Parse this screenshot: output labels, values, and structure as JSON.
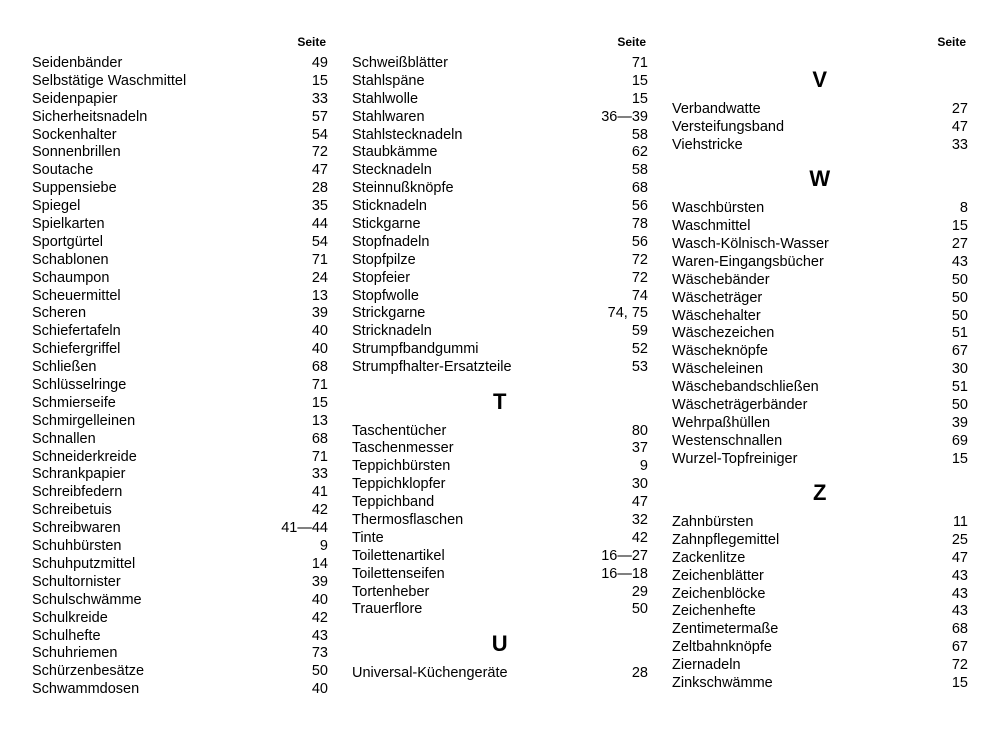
{
  "header_label": "Seite",
  "columns": [
    {
      "sections": [
        {
          "letter": null,
          "entries": [
            {
              "label": "Seidenbänder",
              "page": "49"
            },
            {
              "label": "Selbstätige Waschmittel",
              "page": "15"
            },
            {
              "label": "Seidenpapier",
              "page": "33"
            },
            {
              "label": "Sicherheitsnadeln",
              "page": "57"
            },
            {
              "label": "Sockenhalter",
              "page": "54"
            },
            {
              "label": "Sonnenbrillen",
              "page": "72"
            },
            {
              "label": "Soutache",
              "page": "47"
            },
            {
              "label": "Suppensiebe",
              "page": "28"
            },
            {
              "label": "Spiegel",
              "page": "35"
            },
            {
              "label": "Spielkarten",
              "page": "44"
            },
            {
              "label": "Sportgürtel",
              "page": "54"
            },
            {
              "label": "Schablonen",
              "page": "71"
            },
            {
              "label": "Schaumpon",
              "page": "24"
            },
            {
              "label": "Scheuermittel",
              "page": "13"
            },
            {
              "label": "Scheren",
              "page": "39"
            },
            {
              "label": "Schiefertafeln",
              "page": "40"
            },
            {
              "label": "Schiefergriffel",
              "page": "40"
            },
            {
              "label": "Schließen",
              "page": "68"
            },
            {
              "label": "Schlüsselringe",
              "page": "71"
            },
            {
              "label": "Schmierseife",
              "page": "15"
            },
            {
              "label": "Schmirgelleinen",
              "page": "13"
            },
            {
              "label": "Schnallen",
              "page": "68"
            },
            {
              "label": "Schneiderkreide",
              "page": "71"
            },
            {
              "label": "Schrankpapier",
              "page": "33"
            },
            {
              "label": "Schreibfedern",
              "page": "41"
            },
            {
              "label": "Schreibetuis",
              "page": "42"
            },
            {
              "label": "Schreibwaren",
              "page": "41—44"
            },
            {
              "label": "Schuhbürsten",
              "page": "9"
            },
            {
              "label": "Schuhputzmittel",
              "page": "14"
            },
            {
              "label": "Schultornister",
              "page": "39"
            },
            {
              "label": "Schulschwämme",
              "page": "40"
            },
            {
              "label": "Schulkreide",
              "page": "42"
            },
            {
              "label": "Schulhefte",
              "page": "43"
            },
            {
              "label": "Schuhriemen",
              "page": "73"
            },
            {
              "label": "Schürzenbesätze",
              "page": "50"
            },
            {
              "label": "Schwammdosen",
              "page": "40"
            }
          ]
        }
      ]
    },
    {
      "sections": [
        {
          "letter": null,
          "entries": [
            {
              "label": "Schweißblätter",
              "page": "71"
            },
            {
              "label": "Stahlspäne",
              "page": "15"
            },
            {
              "label": "Stahlwolle",
              "page": "15"
            },
            {
              "label": "Stahlwaren",
              "page": "36—39"
            },
            {
              "label": "Stahlstecknadeln",
              "page": "58"
            },
            {
              "label": "Staubkämme",
              "page": "62"
            },
            {
              "label": "Stecknadeln",
              "page": "58"
            },
            {
              "label": "Steinnußknöpfe",
              "page": "68"
            },
            {
              "label": "Sticknadeln",
              "page": "56"
            },
            {
              "label": "Stickgarne",
              "page": "78"
            },
            {
              "label": "Stopfnadeln",
              "page": "56"
            },
            {
              "label": "Stopfpilze",
              "page": "72"
            },
            {
              "label": "Stopfeier",
              "page": "72"
            },
            {
              "label": "Stopfwolle",
              "page": "74"
            },
            {
              "label": "Strickgarne",
              "page": "74, 75"
            },
            {
              "label": "Stricknadeln",
              "page": "59"
            },
            {
              "label": "Strumpfbandgummi",
              "page": "52"
            },
            {
              "label": "Strumpfhalter-Ersatzteile",
              "page": "53"
            }
          ]
        },
        {
          "letter": "T",
          "entries": [
            {
              "label": "Taschentücher",
              "page": "80"
            },
            {
              "label": "Taschenmesser",
              "page": "37"
            },
            {
              "label": "Teppichbürsten",
              "page": "9"
            },
            {
              "label": "Teppichklopfer",
              "page": "30"
            },
            {
              "label": "Teppichband",
              "page": "47"
            },
            {
              "label": "Thermosflaschen",
              "page": "32"
            },
            {
              "label": "Tinte",
              "page": "42"
            },
            {
              "label": "Toilettenartikel",
              "page": "16—27"
            },
            {
              "label": "Toilettenseifen",
              "page": "16—18"
            },
            {
              "label": "Tortenheber",
              "page": "29"
            },
            {
              "label": "Trauerflore",
              "page": "50"
            }
          ]
        },
        {
          "letter": "U",
          "entries": [
            {
              "label": "Universal-Küchengeräte",
              "page": "28"
            }
          ]
        }
      ]
    },
    {
      "sections": [
        {
          "letter": "V",
          "entries": [
            {
              "label": "Verbandwatte",
              "page": "27"
            },
            {
              "label": "Versteifungsband",
              "page": "47"
            },
            {
              "label": "Viehstricke",
              "page": "33"
            }
          ]
        },
        {
          "letter": "W",
          "entries": [
            {
              "label": "Waschbürsten",
              "page": "8"
            },
            {
              "label": "Waschmittel",
              "page": "15"
            },
            {
              "label": "Wasch-Kölnisch-Wasser",
              "page": "27"
            },
            {
              "label": "Waren-Eingangsbücher",
              "page": "43"
            },
            {
              "label": "Wäschebänder",
              "page": "50"
            },
            {
              "label": "Wäscheträger",
              "page": "50"
            },
            {
              "label": "Wäschehalter",
              "page": "50"
            },
            {
              "label": "Wäschezeichen",
              "page": "51"
            },
            {
              "label": "Wäscheknöpfe",
              "page": "67"
            },
            {
              "label": "Wäscheleinen",
              "page": "30"
            },
            {
              "label": "Wäschebandschließen",
              "page": "51"
            },
            {
              "label": "Wäscheträgerbänder",
              "page": "50"
            },
            {
              "label": "Wehrpaßhüllen",
              "page": "39"
            },
            {
              "label": "Westenschnallen",
              "page": "69"
            },
            {
              "label": "Wurzel-Topfreiniger",
              "page": "15"
            }
          ]
        },
        {
          "letter": "Z",
          "entries": [
            {
              "label": "Zahnbürsten",
              "page": "11"
            },
            {
              "label": "Zahnpflegemittel",
              "page": "25"
            },
            {
              "label": "Zackenlitze",
              "page": "47"
            },
            {
              "label": "Zeichenblätter",
              "page": "43"
            },
            {
              "label": "Zeichenblöcke",
              "page": "43"
            },
            {
              "label": "Zeichenhefte",
              "page": "43"
            },
            {
              "label": "Zentimetermaße",
              "page": "68"
            },
            {
              "label": "Zeltbahnknöpfe",
              "page": "67"
            },
            {
              "label": "Ziernadeln",
              "page": "72"
            },
            {
              "label": "Zinkschwämme",
              "page": "15"
            }
          ]
        }
      ]
    }
  ]
}
